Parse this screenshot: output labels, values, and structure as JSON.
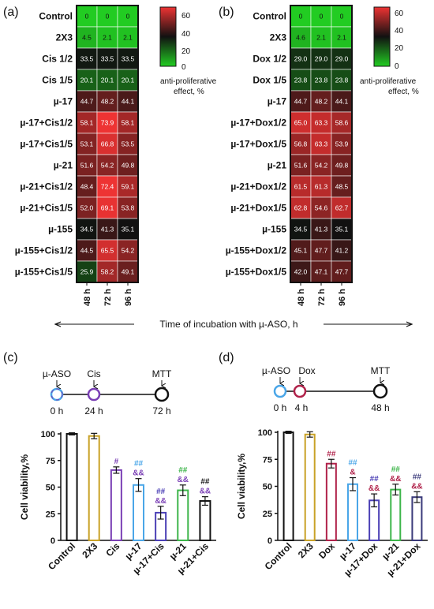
{
  "panels": {
    "a": "(a)",
    "b": "(b)",
    "c": "(c)",
    "d": "(d)"
  },
  "xaxis_label": "Time of incubation with µ-ASO, h",
  "legend_label_1": "anti-proliferative",
  "legend_label_2": "effect, %",
  "legend_ticks": [
    "60",
    "40",
    "20",
    "0"
  ],
  "colors": {
    "green": "#22cc22",
    "black": "#111111",
    "red": "#ee3333"
  },
  "timeline_c": {
    "labels": [
      "µ-ASO",
      "Cis",
      "MTT"
    ],
    "times": [
      "0 h",
      "24 h",
      "72 h"
    ]
  },
  "timeline_d": {
    "labels": [
      "µ-ASO",
      "Dox",
      "MTT"
    ],
    "times": [
      "0 h",
      "4 h",
      "48 h"
    ]
  },
  "chart_data": [
    {
      "type": "heatmap",
      "columns": [
        "48 h",
        "72 h",
        "96 h"
      ],
      "rows": [
        "Control",
        "2X3",
        "Cis 1/2",
        "Cis 1/5",
        "µ-17",
        "µ-17+Cis1/2",
        "µ-17+Cis1/5",
        "µ-21",
        "µ-21+Cis1/2",
        "µ-21+Cis1/5",
        "µ-155",
        "µ-155+Cis1/2",
        "µ-155+Cis1/5"
      ],
      "values": [
        [
          0,
          0,
          0
        ],
        [
          4.5,
          2.1,
          2.1
        ],
        [
          33.5,
          33.5,
          33.5
        ],
        [
          20.1,
          20.1,
          20.1
        ],
        [
          44.7,
          48.2,
          44.1
        ],
        [
          58.1,
          73.9,
          58.1
        ],
        [
          53.1,
          66.8,
          53.5
        ],
        [
          51.6,
          54.2,
          49.8
        ],
        [
          48.4,
          72.4,
          59.1
        ],
        [
          52.0,
          69.1,
          53.8
        ],
        [
          34.5,
          41.3,
          35.1
        ],
        [
          44.5,
          65.5,
          54.2
        ],
        [
          25.9,
          58.2,
          49.1
        ]
      ],
      "labels": [
        [
          "0",
          "0",
          "0"
        ],
        [
          "4.5",
          "2.1",
          "2.1"
        ],
        [
          "33.5",
          "33.5",
          "33.5"
        ],
        [
          "20.1",
          "20.1",
          "20.1"
        ],
        [
          "44.7",
          "48.2",
          "44.1"
        ],
        [
          "58.1",
          "73.9",
          "58.1"
        ],
        [
          "53.1",
          "66.8",
          "53.5"
        ],
        [
          "51.6",
          "54.2",
          "49.8"
        ],
        [
          "48.4",
          "72.4",
          "59.1"
        ],
        [
          "52.0",
          "69.1",
          "53.8"
        ],
        [
          "34.5",
          "41.3",
          "35.1"
        ],
        [
          "44.5",
          "65.5",
          "54.2"
        ],
        [
          "25.9",
          "58.2",
          "49.1"
        ]
      ],
      "scale": [
        0,
        70
      ]
    },
    {
      "type": "heatmap",
      "columns": [
        "48 h",
        "72 h",
        "96 h"
      ],
      "rows": [
        "Control",
        "2X3",
        "Dox 1/2",
        "Dox 1/5",
        "µ-17",
        "µ-17+Dox1/2",
        "µ-17+Dox1/5",
        "µ-21",
        "µ-21+Dox1/2",
        "µ-21+Dox1/5",
        "µ-155",
        "µ-155+Dox1/2",
        "µ-155+Dox1/5"
      ],
      "values": [
        [
          0,
          0,
          0
        ],
        [
          4.6,
          2.1,
          2.1
        ],
        [
          29.0,
          29.0,
          29.0
        ],
        [
          23.8,
          23.8,
          23.8
        ],
        [
          44.7,
          48.2,
          44.1
        ],
        [
          65.0,
          63.3,
          58.6
        ],
        [
          56.8,
          63.3,
          53.9
        ],
        [
          51.6,
          54.2,
          49.8
        ],
        [
          61.5,
          61.3,
          48.5
        ],
        [
          62.8,
          54.6,
          62.7
        ],
        [
          34.5,
          41.3,
          35.1
        ],
        [
          45.1,
          47.7,
          41.2
        ],
        [
          42.0,
          47.1,
          47.7
        ]
      ],
      "labels": [
        [
          "0",
          "0",
          "0"
        ],
        [
          "4.6",
          "2.1",
          "2.1"
        ],
        [
          "29.0",
          "29.0",
          "29.0"
        ],
        [
          "23.8",
          "23.8",
          "23.8"
        ],
        [
          "44.7",
          "48.2",
          "44.1"
        ],
        [
          "65.0",
          "63.3",
          "58.6"
        ],
        [
          "56.8",
          "63.3",
          "53.9"
        ],
        [
          "51.6",
          "54.2",
          "49.8"
        ],
        [
          "61.5",
          "61.3",
          "48.5"
        ],
        [
          "62.8",
          "54.6",
          "62.7"
        ],
        [
          "34.5",
          "41.3",
          "35.1"
        ],
        [
          "45.1",
          "47.7",
          "41.2"
        ],
        [
          "42.0",
          "47.1",
          "47.7"
        ]
      ],
      "scale": [
        0,
        70
      ]
    },
    {
      "type": "bar",
      "categories": [
        "Control",
        "2X3",
        "Cis",
        "µ-17",
        "µ-17+Cis",
        "µ-21",
        "µ-21+Cis"
      ],
      "values": [
        100,
        98,
        66,
        52,
        26,
        47,
        37
      ],
      "errors": [
        1,
        2.5,
        3,
        6,
        6,
        5,
        4
      ],
      "colors": [
        "#111111",
        "#c9a227",
        "#7a3fb5",
        "#4aa6e8",
        "#4a3fb5",
        "#3db54a",
        "#111111"
      ],
      "marks_top": [
        "",
        "",
        "#",
        "##",
        "##",
        "##",
        "##"
      ],
      "marks_bottom": [
        "",
        "",
        "",
        "&&",
        "&&",
        "&&",
        "&&"
      ],
      "ylabel": "Cell viability,%",
      "ylim": [
        0,
        100
      ],
      "yticks": [
        "0",
        "25",
        "50",
        "75",
        "100"
      ]
    },
    {
      "type": "bar",
      "categories": [
        "Control",
        "2X3",
        "Dox",
        "µ-17",
        "µ-17+Dox",
        "µ-21",
        "µ-21+Dox"
      ],
      "values": [
        100,
        98,
        71,
        52,
        37,
        47,
        40
      ],
      "errors": [
        1,
        2.5,
        4,
        6,
        6,
        5,
        5
      ],
      "colors": [
        "#111111",
        "#c9a227",
        "#b0224a",
        "#4aa6e8",
        "#4a3fb5",
        "#3db54a",
        "#3a3a7a"
      ],
      "marks_top": [
        "",
        "",
        "##",
        "##",
        "##",
        "##",
        "##"
      ],
      "marks_bottom": [
        "",
        "",
        "",
        "&",
        "&&",
        "&&",
        "&&"
      ],
      "ylabel": "Cell viability,%",
      "ylim": [
        0,
        100
      ],
      "yticks": [
        "0",
        "25",
        "50",
        "75",
        "100"
      ]
    }
  ]
}
